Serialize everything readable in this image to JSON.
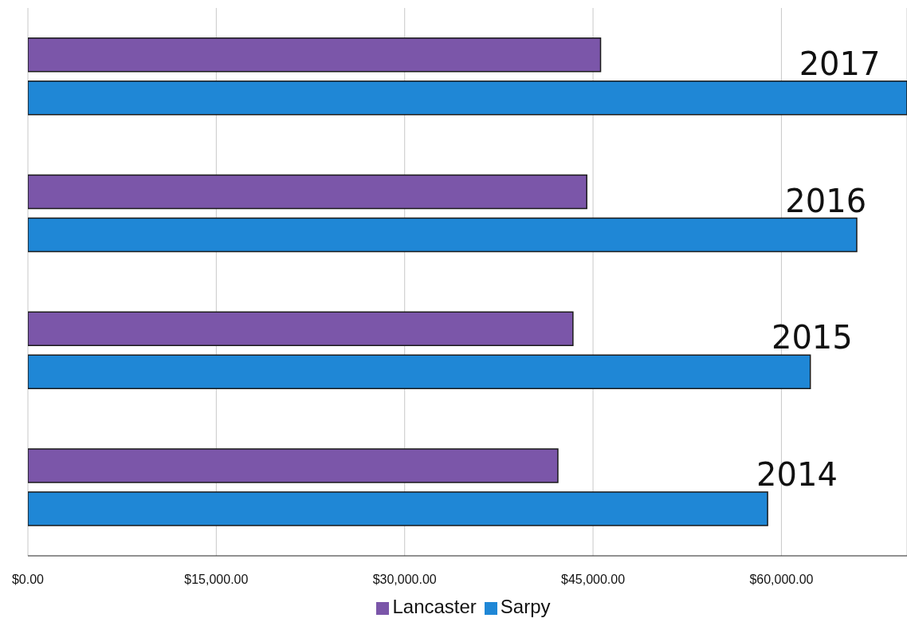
{
  "chart_data": {
    "type": "bar",
    "orientation": "horizontal",
    "categories": [
      "2017",
      "2016",
      "2015",
      "2014"
    ],
    "series": [
      {
        "name": "Lancaster",
        "color": "#7b56a9",
        "values": [
          45600,
          44500,
          43400,
          42200
        ]
      },
      {
        "name": "Sarpy",
        "color": "#1f87d6",
        "values": [
          70000,
          66000,
          62300,
          58900
        ]
      }
    ],
    "xlim": [
      0,
      70000
    ],
    "xticks": [
      {
        "value": 0,
        "label": "$0.00"
      },
      {
        "value": 15000,
        "label": "$15,000.00"
      },
      {
        "value": 30000,
        "label": "$30,000.00"
      },
      {
        "value": 45000,
        "label": "$45,000.00"
      },
      {
        "value": 60000,
        "label": "$60,000.00"
      }
    ],
    "grid": "x",
    "legend": "bottom"
  }
}
